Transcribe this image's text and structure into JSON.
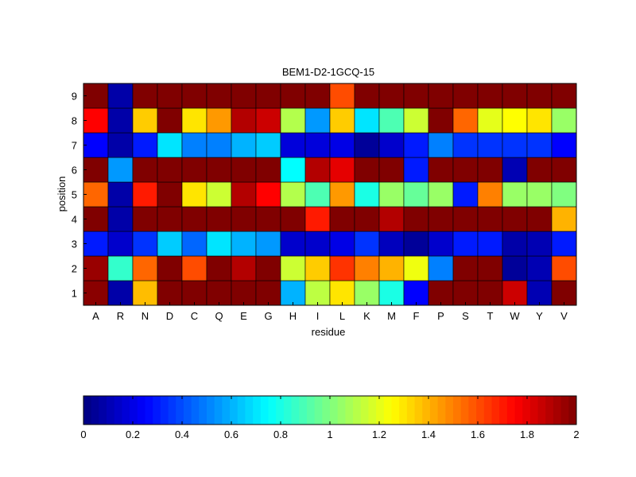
{
  "chart_data": {
    "type": "heatmap",
    "title": "BEM1-D2-1GCQ-15",
    "xlabel": "residue",
    "ylabel": "position",
    "x_categories": [
      "A",
      "R",
      "N",
      "D",
      "C",
      "Q",
      "E",
      "G",
      "H",
      "I",
      "L",
      "K",
      "M",
      "F",
      "P",
      "S",
      "T",
      "W",
      "Y",
      "V"
    ],
    "y_categories": [
      "1",
      "2",
      "3",
      "4",
      "5",
      "6",
      "7",
      "8",
      "9"
    ],
    "values": [
      [
        1.98,
        0.08,
        1.38,
        2.0,
        2.0,
        2.0,
        2.0,
        2.0,
        0.6,
        1.12,
        1.3,
        1.05,
        0.8,
        0.25,
        2.0,
        2.0,
        2.0,
        1.85,
        0.1,
        2.0
      ],
      [
        1.95,
        0.85,
        1.55,
        2.0,
        1.6,
        2.0,
        1.9,
        2.0,
        1.15,
        1.35,
        1.65,
        1.5,
        1.4,
        1.22,
        0.5,
        2.0,
        2.0,
        0.05,
        0.1,
        1.6
      ],
      [
        0.3,
        0.15,
        0.35,
        0.65,
        0.45,
        0.7,
        0.6,
        0.55,
        0.15,
        0.15,
        0.2,
        0.35,
        0.12,
        0.05,
        0.15,
        0.3,
        0.3,
        0.08,
        0.1,
        0.3
      ],
      [
        2.0,
        0.08,
        2.0,
        2.0,
        2.0,
        2.0,
        2.0,
        2.0,
        2.0,
        1.7,
        2.0,
        2.0,
        1.9,
        2.0,
        2.0,
        2.0,
        2.0,
        2.0,
        2.0,
        1.4
      ],
      [
        1.55,
        0.08,
        1.7,
        2.0,
        1.3,
        1.15,
        1.9,
        1.75,
        1.1,
        0.9,
        1.45,
        0.8,
        1.05,
        0.95,
        1.05,
        0.3,
        1.5,
        1.05,
        1.05,
        1.0
      ],
      [
        2.0,
        0.55,
        2.0,
        2.0,
        2.0,
        2.0,
        2.0,
        2.0,
        0.75,
        1.9,
        1.8,
        2.0,
        2.0,
        0.3,
        2.0,
        2.0,
        2.0,
        0.1,
        2.0,
        2.0
      ],
      [
        0.25,
        0.08,
        0.3,
        0.7,
        0.5,
        0.5,
        0.6,
        0.65,
        0.18,
        0.18,
        0.2,
        0.05,
        0.15,
        0.3,
        0.5,
        0.35,
        0.35,
        0.35,
        0.35,
        0.25
      ],
      [
        1.75,
        0.08,
        1.35,
        2.0,
        1.3,
        1.45,
        1.9,
        1.85,
        1.1,
        0.55,
        1.35,
        0.7,
        0.9,
        1.15,
        2.0,
        1.55,
        1.2,
        1.25,
        1.3,
        1.05
      ],
      [
        2.0,
        0.08,
        2.0,
        2.0,
        2.0,
        2.0,
        2.0,
        2.0,
        2.0,
        2.0,
        1.6,
        2.0,
        2.0,
        2.0,
        2.0,
        2.0,
        2.0,
        2.0,
        2.0,
        2.0
      ]
    ],
    "colormap": "jet",
    "clim": [
      0,
      2
    ],
    "colorbar": {
      "orientation": "horizontal",
      "placement": "bottom",
      "ticks": [
        0,
        0.2,
        0.4,
        0.6,
        0.8,
        1,
        1.2,
        1.4,
        1.6,
        1.8,
        2
      ],
      "tick_labels": [
        "0",
        "0.2",
        "0.4",
        "0.6",
        "0.8",
        "1",
        "1.2",
        "1.4",
        "1.6",
        "1.8",
        "2"
      ]
    },
    "grid": true
  }
}
